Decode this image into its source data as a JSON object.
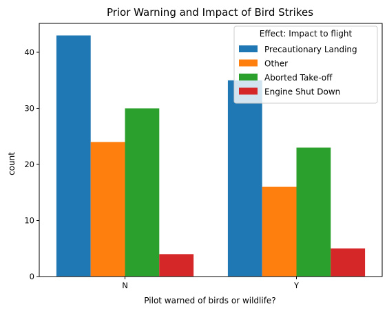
{
  "chart_data": {
    "type": "bar",
    "title": "Prior Warning and Impact of Bird Strikes",
    "xlabel": "Pilot warned of birds or wildlife?",
    "ylabel": "count",
    "categories": [
      "N",
      "Y"
    ],
    "ylim": [
      0,
      45.15
    ],
    "yticks": [
      0,
      10,
      20,
      30,
      40
    ],
    "grid": false,
    "legend": {
      "title": "Effect: Impact to flight",
      "position": "top-right"
    },
    "series": [
      {
        "name": "Precautionary Landing",
        "color": "#1f77b4",
        "values": [
          43,
          35
        ]
      },
      {
        "name": "Other",
        "color": "#ff7f0e",
        "values": [
          24,
          16
        ]
      },
      {
        "name": "Aborted Take-off",
        "color": "#2ca02c",
        "values": [
          30,
          23
        ]
      },
      {
        "name": "Engine Shut Down",
        "color": "#d62728",
        "values": [
          4,
          5
        ]
      }
    ]
  }
}
